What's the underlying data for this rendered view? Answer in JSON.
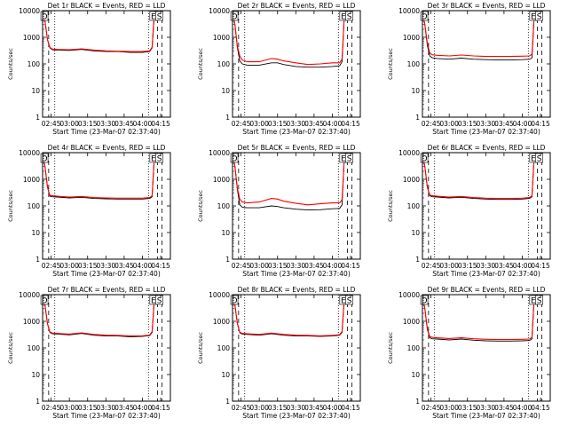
{
  "x_ticks": [
    "02:45",
    "03:00",
    "03:15",
    "03:30",
    "03:45",
    "04:00",
    "04:15"
  ],
  "x_tick_minutes": [
    165,
    180,
    195,
    210,
    225,
    240,
    255
  ],
  "y_ticks": [
    "1",
    "10",
    "100",
    "1000",
    "10000"
  ],
  "y_tick_values": [
    1,
    10,
    100,
    1000,
    10000
  ],
  "xlabel": "Start Time (23-Mar-07 02:37:40)",
  "ylabel": "Counts/sec",
  "colors": {
    "events": "#000000",
    "lld": "#ff0000"
  },
  "chart_data": [
    {
      "type": "line",
      "title": "Det 1r BLACK = Events, RED = LLD",
      "xlim": [
        158,
        263
      ],
      "ylim": [
        1,
        10000
      ],
      "yscale": "log",
      "markers": {
        "D": 159.5,
        "E": 249,
        "S": 254
      },
      "dashed_lines": [
        163,
        252.5,
        256
      ],
      "dotted_lines": [
        168,
        245
      ],
      "series": [
        {
          "x": [
            158,
            160,
            162,
            164,
            166,
            170,
            180,
            190,
            200,
            210,
            220,
            230,
            240,
            246,
            248,
            249,
            250,
            252,
            254
          ],
          "values": [
            10000,
            4000,
            800,
            400,
            340,
            330,
            320,
            350,
            310,
            290,
            290,
            270,
            270,
            290,
            400,
            2000,
            10000,
            10000,
            10000
          ]
        },
        {
          "x": [
            158,
            160,
            162,
            164,
            166,
            170,
            180,
            190,
            200,
            210,
            220,
            230,
            240,
            246,
            248,
            249,
            250,
            252,
            254
          ],
          "values": [
            10000,
            4000,
            820,
            420,
            360,
            350,
            340,
            370,
            330,
            310,
            300,
            290,
            290,
            310,
            430,
            2200,
            10000,
            10000,
            10000
          ]
        }
      ]
    },
    {
      "type": "line",
      "title": "Det 2r BLACK = Events, RED = LLD",
      "xlim": [
        158,
        263
      ],
      "ylim": [
        1,
        10000
      ],
      "yscale": "log",
      "markers": {
        "D": 159.5,
        "E": 249,
        "S": 254
      },
      "dashed_lines": [
        163,
        252.5,
        256
      ],
      "dotted_lines": [
        168,
        245
      ],
      "series": [
        {
          "x": [
            158,
            160,
            162,
            164,
            166,
            170,
            180,
            190,
            195,
            200,
            210,
            220,
            230,
            240,
            246,
            248,
            249,
            250,
            252,
            254
          ],
          "values": [
            10000,
            3000,
            400,
            130,
            100,
            90,
            90,
            110,
            110,
            95,
            80,
            75,
            75,
            80,
            85,
            120,
            1000,
            10000,
            10000,
            10000
          ]
        },
        {
          "x": [
            158,
            160,
            162,
            164,
            166,
            170,
            180,
            190,
            195,
            200,
            210,
            220,
            230,
            240,
            246,
            248,
            249,
            250,
            252,
            254
          ],
          "values": [
            10000,
            3000,
            450,
            200,
            140,
            120,
            120,
            160,
            150,
            130,
            110,
            95,
            100,
            110,
            110,
            150,
            1100,
            10000,
            10000,
            10000
          ]
        }
      ]
    },
    {
      "type": "line",
      "title": "Det 3r BLACK = Events, RED = LLD",
      "xlim": [
        158,
        263
      ],
      "ylim": [
        1,
        10000
      ],
      "yscale": "log",
      "markers": {
        "D": 159.5,
        "E": 249,
        "S": 254
      },
      "dashed_lines": [
        163,
        252.5,
        256
      ],
      "dotted_lines": [
        168,
        245
      ],
      "series": [
        {
          "x": [
            158,
            160,
            162,
            164,
            166,
            170,
            180,
            190,
            200,
            210,
            220,
            230,
            240,
            246,
            248,
            249,
            250,
            252,
            254
          ],
          "values": [
            10000,
            3000,
            500,
            200,
            170,
            160,
            150,
            165,
            150,
            145,
            140,
            140,
            145,
            150,
            170,
            1200,
            10000,
            10000,
            10000
          ]
        },
        {
          "x": [
            158,
            160,
            162,
            164,
            166,
            170,
            180,
            190,
            200,
            210,
            220,
            230,
            240,
            246,
            248,
            249,
            250,
            252,
            254
          ],
          "values": [
            10000,
            3000,
            600,
            260,
            220,
            210,
            200,
            215,
            200,
            190,
            190,
            190,
            195,
            200,
            230,
            1400,
            10000,
            10000,
            10000
          ]
        }
      ]
    },
    {
      "type": "line",
      "title": "Det 4r BLACK = Events, RED = LLD",
      "xlim": [
        158,
        263
      ],
      "ylim": [
        1,
        10000
      ],
      "yscale": "log",
      "markers": {
        "D": 159.5,
        "E": 249,
        "S": 254
      },
      "dashed_lines": [
        163,
        252.5,
        256
      ],
      "dotted_lines": [
        168,
        245
      ],
      "series": [
        {
          "x": [
            158,
            160,
            162,
            164,
            166,
            170,
            180,
            190,
            200,
            210,
            220,
            230,
            240,
            246,
            248,
            249,
            250,
            252,
            254
          ],
          "values": [
            10000,
            3000,
            500,
            230,
            220,
            215,
            200,
            210,
            190,
            185,
            180,
            180,
            180,
            190,
            220,
            1500,
            10000,
            10000,
            10000
          ]
        },
        {
          "x": [
            158,
            160,
            162,
            164,
            166,
            170,
            180,
            190,
            200,
            210,
            220,
            230,
            240,
            246,
            248,
            249,
            250,
            252,
            254
          ],
          "values": [
            10000,
            3000,
            520,
            250,
            240,
            230,
            215,
            225,
            205,
            200,
            195,
            195,
            195,
            205,
            240,
            1600,
            10000,
            10000,
            10000
          ]
        }
      ]
    },
    {
      "type": "line",
      "title": "Det 5r BLACK = Events, RED = LLD",
      "xlim": [
        158,
        263
      ],
      "ylim": [
        1,
        10000
      ],
      "yscale": "log",
      "markers": {
        "D": 159.5,
        "E": 249,
        "S": 254
      },
      "dashed_lines": [
        163,
        252.5,
        256
      ],
      "dotted_lines": [
        168,
        245
      ],
      "series": [
        {
          "x": [
            158,
            160,
            162,
            164,
            166,
            170,
            180,
            190,
            195,
            200,
            210,
            220,
            230,
            240,
            246,
            248,
            249,
            250,
            252,
            254
          ],
          "values": [
            10000,
            3000,
            400,
            110,
            90,
            85,
            85,
            100,
            95,
            85,
            75,
            70,
            72,
            78,
            80,
            110,
            1000,
            10000,
            10000,
            10000
          ]
        },
        {
          "x": [
            158,
            160,
            162,
            164,
            166,
            170,
            180,
            190,
            195,
            200,
            210,
            220,
            230,
            240,
            246,
            248,
            249,
            250,
            252,
            254
          ],
          "values": [
            10000,
            3000,
            450,
            180,
            140,
            130,
            140,
            190,
            180,
            150,
            125,
            110,
            120,
            130,
            130,
            170,
            1100,
            10000,
            10000,
            10000
          ]
        }
      ]
    },
    {
      "type": "line",
      "title": "Det 6r BLACK = Events, RED = LLD",
      "xlim": [
        158,
        263
      ],
      "ylim": [
        1,
        10000
      ],
      "yscale": "log",
      "markers": {
        "D": 159.5,
        "E": 249,
        "S": 254
      },
      "dashed_lines": [
        163,
        252.5,
        256
      ],
      "dotted_lines": [
        168,
        245
      ],
      "series": [
        {
          "x": [
            158,
            160,
            162,
            164,
            166,
            170,
            180,
            190,
            200,
            210,
            220,
            230,
            240,
            246,
            248,
            249,
            250,
            252,
            254
          ],
          "values": [
            10000,
            3000,
            500,
            240,
            220,
            215,
            200,
            210,
            190,
            180,
            175,
            175,
            180,
            190,
            220,
            1500,
            10000,
            10000,
            10000
          ]
        },
        {
          "x": [
            158,
            160,
            162,
            164,
            166,
            170,
            180,
            190,
            200,
            210,
            220,
            230,
            240,
            246,
            248,
            249,
            250,
            252,
            254
          ],
          "values": [
            10000,
            3000,
            520,
            260,
            240,
            230,
            215,
            225,
            205,
            195,
            190,
            190,
            195,
            205,
            240,
            1600,
            10000,
            10000,
            10000
          ]
        }
      ]
    },
    {
      "type": "line",
      "title": "Det 7r BLACK = Events, RED = LLD",
      "xlim": [
        158,
        263
      ],
      "ylim": [
        1,
        10000
      ],
      "yscale": "log",
      "markers": {
        "D": 159.5,
        "E": 249,
        "S": 254
      },
      "dashed_lines": [
        163,
        252.5,
        256
      ],
      "dotted_lines": [
        168,
        245
      ],
      "series": [
        {
          "x": [
            158,
            160,
            162,
            164,
            166,
            170,
            180,
            190,
            200,
            210,
            220,
            230,
            240,
            246,
            248,
            249,
            250,
            252,
            254
          ],
          "values": [
            10000,
            4000,
            800,
            380,
            340,
            330,
            310,
            350,
            300,
            280,
            280,
            260,
            270,
            290,
            380,
            1800,
            10000,
            10000,
            10000
          ]
        },
        {
          "x": [
            158,
            160,
            162,
            164,
            166,
            170,
            180,
            190,
            200,
            210,
            220,
            230,
            240,
            246,
            248,
            249,
            250,
            252,
            254
          ],
          "values": [
            10000,
            4000,
            820,
            400,
            360,
            350,
            330,
            370,
            320,
            300,
            295,
            280,
            285,
            305,
            410,
            2000,
            10000,
            10000,
            10000
          ]
        }
      ]
    },
    {
      "type": "line",
      "title": "Det 8r BLACK = Events, RED = LLD",
      "xlim": [
        158,
        263
      ],
      "ylim": [
        1,
        10000
      ],
      "yscale": "log",
      "markers": {
        "D": 159.5,
        "E": 249,
        "S": 254
      },
      "dashed_lines": [
        163,
        252.5,
        256
      ],
      "dotted_lines": [
        168,
        245
      ],
      "series": [
        {
          "x": [
            158,
            160,
            162,
            164,
            166,
            170,
            180,
            190,
            200,
            210,
            220,
            230,
            240,
            246,
            248,
            249,
            250,
            252,
            254
          ],
          "values": [
            10000,
            4000,
            800,
            370,
            330,
            320,
            300,
            340,
            300,
            280,
            280,
            270,
            280,
            300,
            380,
            1800,
            10000,
            10000,
            10000
          ]
        },
        {
          "x": [
            158,
            160,
            162,
            164,
            166,
            170,
            180,
            190,
            200,
            210,
            220,
            230,
            240,
            246,
            248,
            249,
            250,
            252,
            254
          ],
          "values": [
            10000,
            4000,
            820,
            390,
            350,
            340,
            320,
            360,
            320,
            300,
            295,
            285,
            295,
            315,
            410,
            2000,
            10000,
            10000,
            10000
          ]
        }
      ]
    },
    {
      "type": "line",
      "title": "Det 9r BLACK = Events, RED = LLD",
      "xlim": [
        158,
        263
      ],
      "ylim": [
        1,
        10000
      ],
      "yscale": "log",
      "markers": {
        "D": 159.5,
        "E": 249,
        "S": 254
      },
      "dashed_lines": [
        163,
        252.5,
        256
      ],
      "dotted_lines": [
        168,
        245
      ],
      "series": [
        {
          "x": [
            158,
            160,
            162,
            164,
            166,
            170,
            180,
            190,
            200,
            210,
            220,
            230,
            240,
            246,
            248,
            249,
            250,
            252,
            254
          ],
          "values": [
            10000,
            3000,
            500,
            240,
            220,
            215,
            200,
            215,
            195,
            185,
            180,
            180,
            185,
            190,
            220,
            1500,
            10000,
            10000,
            10000
          ]
        },
        {
          "x": [
            158,
            160,
            162,
            164,
            166,
            170,
            180,
            190,
            200,
            210,
            220,
            230,
            240,
            246,
            248,
            249,
            250,
            252,
            254
          ],
          "values": [
            10000,
            3000,
            540,
            270,
            250,
            240,
            225,
            240,
            220,
            210,
            205,
            205,
            210,
            215,
            250,
            1700,
            10000,
            10000,
            10000
          ]
        }
      ]
    }
  ]
}
